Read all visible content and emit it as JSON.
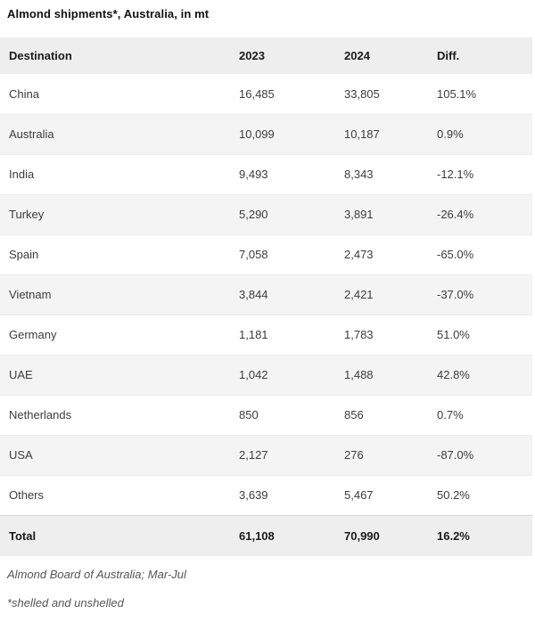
{
  "title": "Almond shipments*, Australia, in mt",
  "table": {
    "headers": [
      "Destination",
      "2023",
      "2024",
      "Diff."
    ],
    "rows": [
      {
        "destination": "China",
        "y2023": "16,485",
        "y2024": "33,805",
        "diff": "105.1%"
      },
      {
        "destination": "Australia",
        "y2023": "10,099",
        "y2024": "10,187",
        "diff": "0.9%"
      },
      {
        "destination": "India",
        "y2023": "9,493",
        "y2024": "8,343",
        "diff": "-12.1%"
      },
      {
        "destination": "Turkey",
        "y2023": "5,290",
        "y2024": "3,891",
        "diff": "-26.4%"
      },
      {
        "destination": "Spain",
        "y2023": "7,058",
        "y2024": "2,473",
        "diff": "-65.0%"
      },
      {
        "destination": "Vietnam",
        "y2023": "3,844",
        "y2024": "2,421",
        "diff": "-37.0%"
      },
      {
        "destination": "Germany",
        "y2023": "1,181",
        "y2024": "1,783",
        "diff": "51.0%"
      },
      {
        "destination": "UAE",
        "y2023": "1,042",
        "y2024": "1,488",
        "diff": "42.8%"
      },
      {
        "destination": "Netherlands",
        "y2023": "850",
        "y2024": "856",
        "diff": "0.7%"
      },
      {
        "destination": "USA",
        "y2023": "2,127",
        "y2024": "276",
        "diff": "-87.0%"
      },
      {
        "destination": "Others",
        "y2023": "3,639",
        "y2024": "5,467",
        "diff": "50.2%"
      }
    ],
    "total": {
      "destination": "Total",
      "y2023": "61,108",
      "y2024": "70,990",
      "diff": "16.2%"
    }
  },
  "footer": {
    "source": "Almond Board of Australia; Mar-Jul",
    "footnote": "*shelled and unshelled"
  },
  "colors": {
    "header_bg": "#eeeeee",
    "alt_row_bg": "#f4f4f4",
    "total_bg": "#eeeeee",
    "body_text": "#3c3c3c",
    "heading_text": "#1a1a1a",
    "footer_text": "#555555"
  },
  "chart_data": {
    "type": "table",
    "title": "Almond shipments*, Australia, in mt",
    "unit": "mt",
    "columns": [
      "Destination",
      "2023",
      "2024",
      "Diff."
    ],
    "rows": [
      [
        "China",
        16485,
        33805,
        "105.1%"
      ],
      [
        "Australia",
        10099,
        10187,
        "0.9%"
      ],
      [
        "India",
        9493,
        8343,
        "-12.1%"
      ],
      [
        "Turkey",
        5290,
        3891,
        "-26.4%"
      ],
      [
        "Spain",
        7058,
        2473,
        "-65.0%"
      ],
      [
        "Vietnam",
        3844,
        2421,
        "-37.0%"
      ],
      [
        "Germany",
        1181,
        1783,
        "51.0%"
      ],
      [
        "UAE",
        1042,
        1488,
        "42.8%"
      ],
      [
        "Netherlands",
        850,
        856,
        "0.7%"
      ],
      [
        "USA",
        2127,
        276,
        "-87.0%"
      ],
      [
        "Others",
        3639,
        5467,
        "50.2%"
      ]
    ],
    "total_row": [
      "Total",
      61108,
      70990,
      "16.2%"
    ],
    "source": "Almond Board of Australia; Mar-Jul",
    "footnote": "*shelled and unshelled"
  }
}
